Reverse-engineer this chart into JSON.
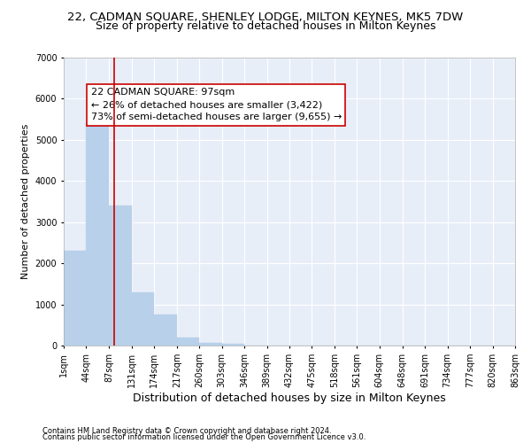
{
  "title": "22, CADMAN SQUARE, SHENLEY LODGE, MILTON KEYNES, MK5 7DW",
  "subtitle": "Size of property relative to detached houses in Milton Keynes",
  "xlabel": "Distribution of detached houses by size in Milton Keynes",
  "ylabel": "Number of detached properties",
  "footnote1": "Contains HM Land Registry data © Crown copyright and database right 2024.",
  "footnote2": "Contains public sector information licensed under the Open Government Licence v3.0.",
  "bar_edges": [
    1,
    44,
    87,
    131,
    174,
    217,
    260,
    303,
    346,
    389,
    432,
    475,
    518,
    561,
    604,
    648,
    691,
    734,
    777,
    820,
    863
  ],
  "bar_heights": [
    2300,
    5400,
    3400,
    1300,
    750,
    190,
    75,
    50,
    0,
    0,
    0,
    0,
    0,
    0,
    0,
    0,
    0,
    0,
    0,
    0
  ],
  "bar_color": "#b8d0ea",
  "bar_edgecolor": "#b8d0ea",
  "vline_x": 97,
  "vline_color": "#cc0000",
  "annotation_title": "22 CADMAN SQUARE: 97sqm",
  "annotation_line1": "← 26% of detached houses are smaller (3,422)",
  "annotation_line2": "73% of semi-detached houses are larger (9,655) →",
  "annotation_box_facecolor": "white",
  "annotation_box_edgecolor": "#cc0000",
  "ylim": [
    0,
    7000
  ],
  "background_color": "#e8eef8",
  "grid_color": "white",
  "tick_labels": [
    "1sqm",
    "44sqm",
    "87sqm",
    "131sqm",
    "174sqm",
    "217sqm",
    "260sqm",
    "303sqm",
    "346sqm",
    "389sqm",
    "432sqm",
    "475sqm",
    "518sqm",
    "561sqm",
    "604sqm",
    "648sqm",
    "691sqm",
    "734sqm",
    "777sqm",
    "820sqm",
    "863sqm"
  ],
  "title_fontsize": 9.5,
  "subtitle_fontsize": 9,
  "xlabel_fontsize": 9,
  "ylabel_fontsize": 8,
  "tick_fontsize": 7,
  "annot_fontsize": 8,
  "footnote_fontsize": 6
}
